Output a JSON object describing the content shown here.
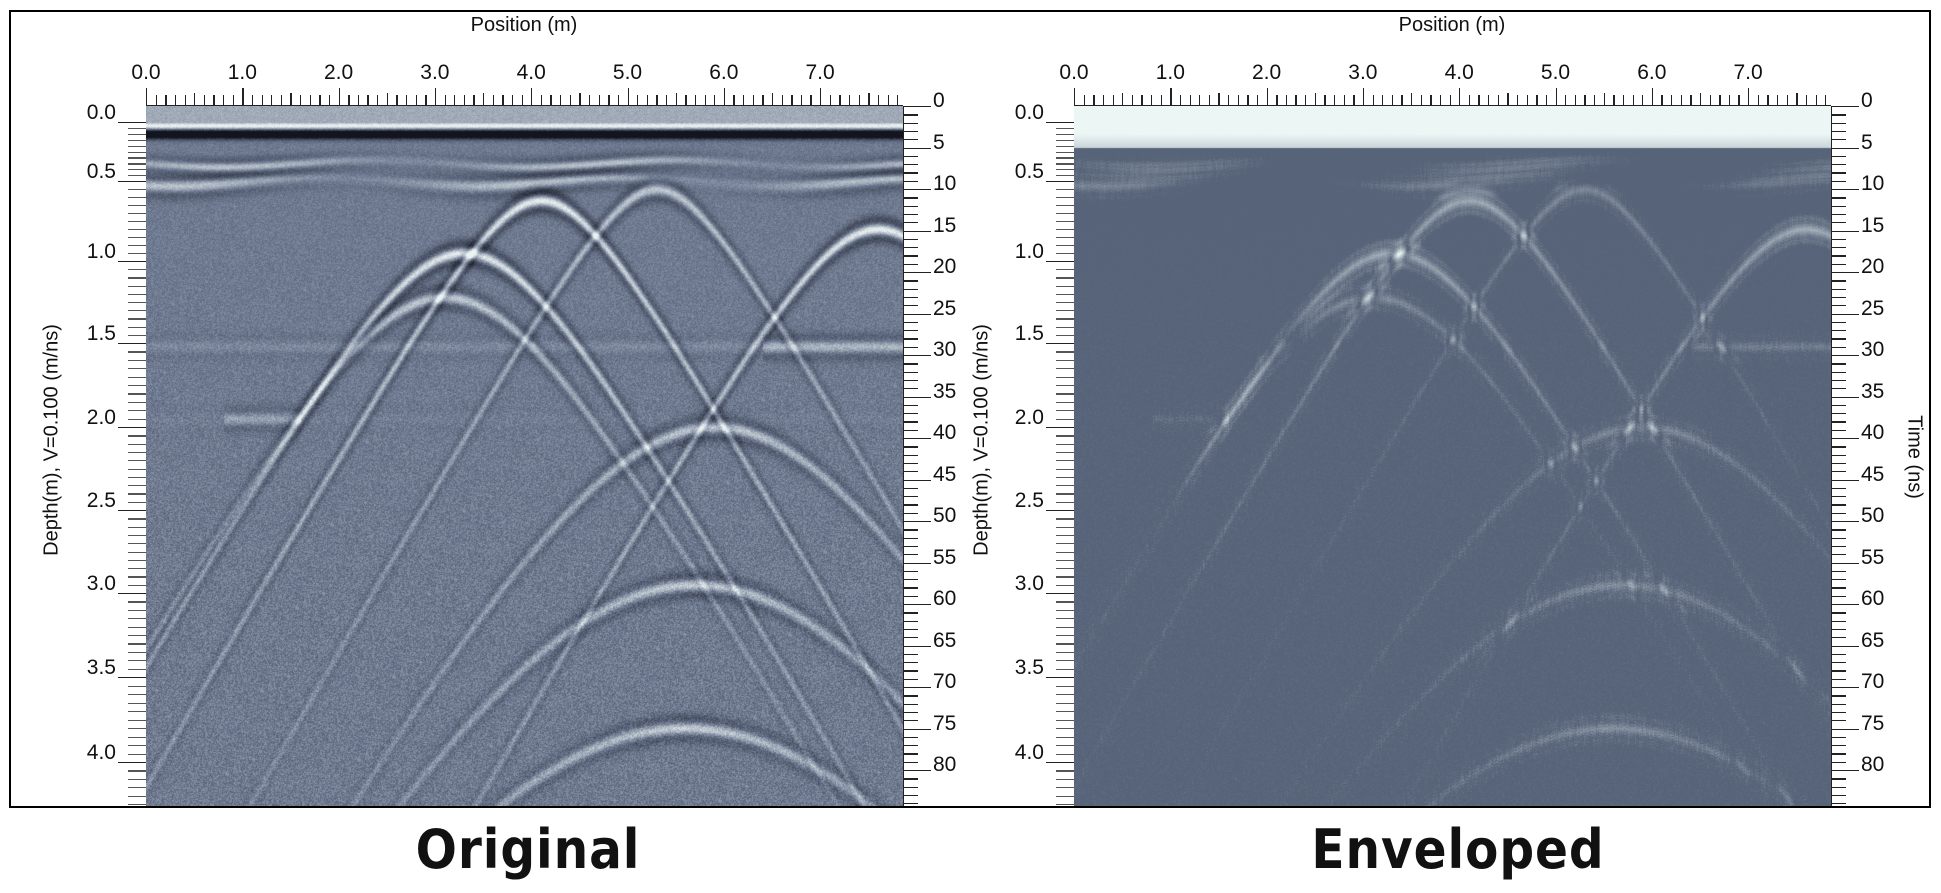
{
  "figure": {
    "panels": [
      {
        "caption": "Original",
        "mode": "original"
      },
      {
        "caption": "Enveloped",
        "mode": "envelope"
      }
    ]
  },
  "colors": {
    "background_gray_blue": "#6e7a91",
    "envelope_background": "#56647a",
    "reflection_light": "#e8f2f2",
    "reflection_dark": "#121420"
  },
  "chart_data": [
    {
      "type": "heatmap",
      "title": "Original",
      "xlabel": "Position (m)",
      "ylabel": "Depth(m), V=0.100 (m/ns)",
      "y2label": "",
      "xlim": [
        0,
        7.85
      ],
      "ylim_depth": [
        0,
        4.25
      ],
      "ylim_time": [
        0,
        84
      ],
      "x_ticks": [
        "0.0",
        "1.0",
        "2.0",
        "3.0",
        "4.0",
        "5.0",
        "6.0",
        "7.0"
      ],
      "depth_ticks": [
        "0.0",
        "0.5",
        "1.0",
        "1.5",
        "2.0",
        "2.5",
        "3.0",
        "3.5",
        "4.0"
      ],
      "time_ticks": [
        "0",
        "5",
        "10",
        "15",
        "20",
        "25",
        "30",
        "35",
        "40",
        "45",
        "50",
        "55",
        "60",
        "65",
        "70",
        "75",
        "80"
      ],
      "velocity_m_per_ns": 0.1,
      "colormap": "grayscale-blue",
      "horizontal_reflections_depth_m": [
        0.1,
        0.35,
        0.5
      ],
      "hyperbola_apexes": [
        {
          "position": 4.1,
          "depth": 0.62
        },
        {
          "position": 5.3,
          "depth": 0.55
        },
        {
          "position": 3.3,
          "depth": 0.95
        },
        {
          "position": 3.1,
          "depth": 1.22
        },
        {
          "position": 7.6,
          "depth": 0.8
        },
        {
          "position": 5.9,
          "depth": 2.0
        },
        {
          "position": 5.7,
          "depth": 2.95
        },
        {
          "position": 5.6,
          "depth": 3.8
        }
      ]
    },
    {
      "type": "heatmap",
      "title": "Enveloped",
      "xlabel": "Position (m)",
      "ylabel": "Depth(m), V=0.100 (m/ns)",
      "y2label": "Time (ns)",
      "xlim": [
        0,
        7.85
      ],
      "ylim_depth": [
        0,
        4.25
      ],
      "ylim_time": [
        0,
        84
      ],
      "x_ticks": [
        "0.0",
        "1.0",
        "2.0",
        "3.0",
        "4.0",
        "5.0",
        "6.0",
        "7.0"
      ],
      "depth_ticks": [
        "0.0",
        "0.5",
        "1.0",
        "1.5",
        "2.0",
        "2.5",
        "3.0",
        "3.5",
        "4.0"
      ],
      "time_ticks": [
        "0",
        "5",
        "10",
        "15",
        "20",
        "25",
        "30",
        "35",
        "40",
        "45",
        "50",
        "55",
        "60",
        "65",
        "70",
        "75",
        "80"
      ],
      "colormap": "envelope-grayscale-blue"
    }
  ]
}
